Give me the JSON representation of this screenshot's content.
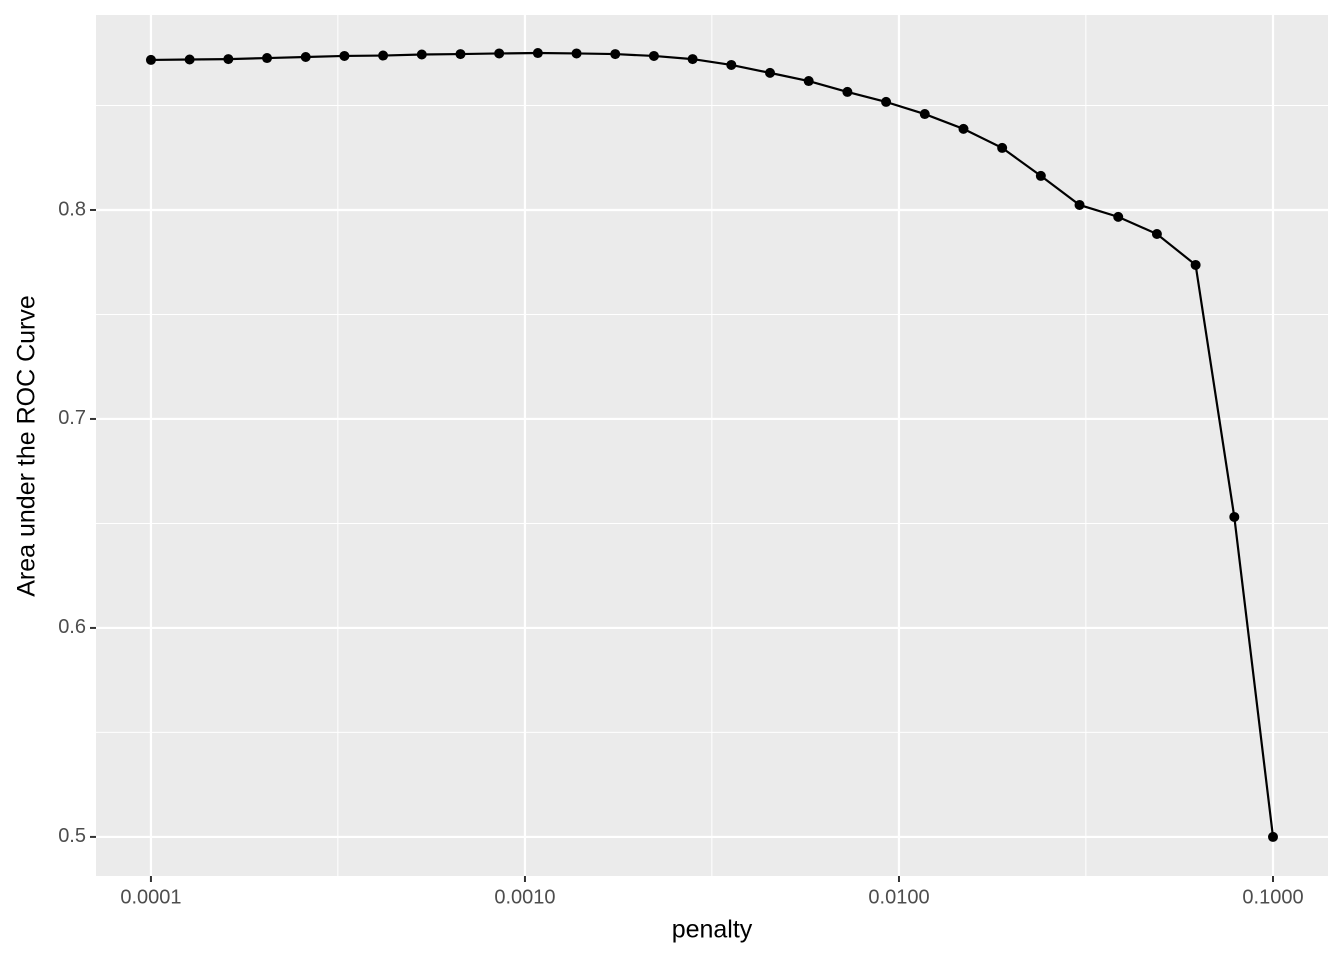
{
  "chart_data": {
    "type": "line",
    "x_label": "penalty",
    "y_label": "Area under the ROC Curve",
    "x": [
      0.0001,
      0.00012689,
      0.00016103,
      0.00020434,
      0.00025929,
      0.00032903,
      0.00041753,
      0.00052983,
      0.00067234,
      0.00085317,
      0.0010826,
      0.0013738,
      0.0017433,
      0.0022122,
      0.0028072,
      0.0035622,
      0.0045204,
      0.0057362,
      0.007279,
      0.0092367,
      0.011721,
      0.014874,
      0.018874,
      0.02395,
      0.030392,
      0.038566,
      0.048939,
      0.062102,
      0.078805,
      0.1
    ],
    "values": [
      0.8718,
      0.872,
      0.8722,
      0.8727,
      0.8732,
      0.8737,
      0.8739,
      0.8744,
      0.8746,
      0.8749,
      0.8751,
      0.8749,
      0.8746,
      0.8737,
      0.8722,
      0.8694,
      0.8656,
      0.8617,
      0.8565,
      0.8517,
      0.8459,
      0.8388,
      0.8297,
      0.8163,
      0.8024,
      0.7967,
      0.7885,
      0.7737,
      0.6531,
      0.5
    ],
    "color": "#000000",
    "markers": true,
    "x_log_scale": true,
    "xlim": [
      7.13e-05,
      0.1403
    ],
    "xticks": [
      0.0001,
      {
        "value": 0.001,
        "label": "0.0010"
      },
      {
        "value": 0.01,
        "label": "0.0100"
      },
      {
        "value": 0.1,
        "label": "0.1000"
      }
    ],
    "x_minor_ticks": [
      0.000316,
      0.00316,
      0.0316
    ],
    "ylim": [
      0.4813,
      0.8933
    ],
    "yticks": [
      0.5,
      0.6,
      0.7,
      0.8
    ],
    "y_minor_ticks": [
      0.55,
      0.65,
      0.75,
      0.85
    ],
    "grid": true
  }
}
